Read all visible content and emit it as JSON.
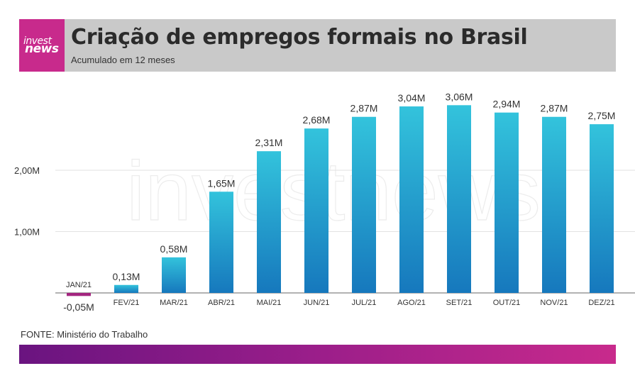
{
  "header": {
    "logo_top": "invest",
    "logo_bottom": "news",
    "title": "Criação de empregos formais no Brasil",
    "subtitle": "Acumulado em 12 meses"
  },
  "watermark": "investnews",
  "source": "FONTE: Ministério do Trabalho",
  "colors": {
    "bar_top": "#33c3dc",
    "bar_bottom": "#1678bd",
    "negative_bar": "#a3257f",
    "header_bg": "#c9c9c9",
    "logo_bg": "#c82a8c"
  },
  "chart_data": {
    "type": "bar",
    "title": "Criação de empregos formais no Brasil",
    "subtitle": "Acumulado em 12 meses",
    "unit": "M",
    "categories": [
      "JAN/21",
      "FEV/21",
      "MAR/21",
      "ABR/21",
      "MAI/21",
      "JUN/21",
      "JUL/21",
      "AGO/21",
      "SET/21",
      "OUT/21",
      "NOV/21",
      "DEZ/21"
    ],
    "values": [
      -0.05,
      0.13,
      0.58,
      1.65,
      2.31,
      2.68,
      2.87,
      3.04,
      3.06,
      2.94,
      2.87,
      2.75
    ],
    "value_labels": [
      "-0,05M",
      "0,13M",
      "0,58M",
      "1,65M",
      "2,31M",
      "2,68M",
      "2,87M",
      "3,04M",
      "3,06M",
      "2,94M",
      "2,87M",
      "2,75M"
    ],
    "yticks": [
      1.0,
      2.0
    ],
    "ytick_labels": [
      "1,00M",
      "2,00M"
    ],
    "ylim": [
      -0.1,
      3.4
    ],
    "grid": true
  }
}
